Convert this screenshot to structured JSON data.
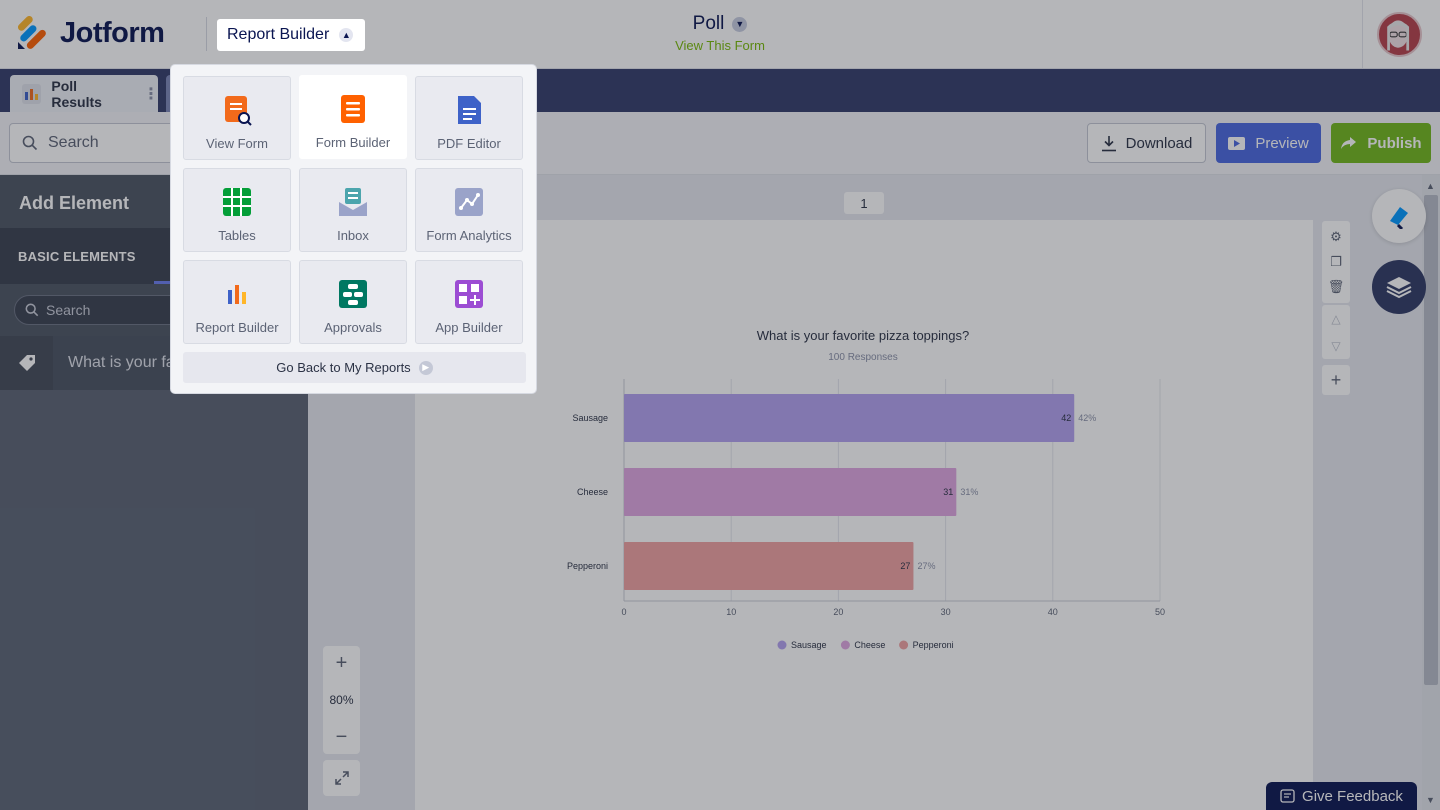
{
  "header": {
    "logo_text": "Jotform",
    "app_switcher_label": "Report Builder",
    "form_title": "Poll",
    "view_form_link": "View This Form"
  },
  "tabs": [
    {
      "label": "Poll Results"
    }
  ],
  "toolbar": {
    "search_placeholder": "Search",
    "download_label": "Download",
    "preview_label": "Preview",
    "publish_label": "Publish"
  },
  "left_panel": {
    "title": "Add Element",
    "tab_label": "BASIC ELEMENTS",
    "search_placeholder": "Search",
    "items": [
      {
        "label": "What is your fa"
      }
    ]
  },
  "canvas": {
    "page_number": "1",
    "zoom_level": "80%"
  },
  "chart_data": {
    "type": "bar",
    "orientation": "horizontal",
    "title": "What is your favorite pizza toppings?",
    "subtitle": "100 Responses",
    "categories": [
      "Sausage",
      "Cheese",
      "Pepperoni"
    ],
    "values": [
      42,
      31,
      27
    ],
    "percent_labels": [
      "42%",
      "31%",
      "27%"
    ],
    "colors": [
      "#b4a2f0",
      "#e0a6e2",
      "#f1a1a1"
    ],
    "xlim": [
      0,
      50
    ],
    "xticks": [
      0,
      10,
      20,
      30,
      40,
      50
    ],
    "grid": true,
    "legend_position": "bottom"
  },
  "app_menu": {
    "items": [
      {
        "label": "View Form",
        "icon": "view-form-icon",
        "color": "#f26a1b"
      },
      {
        "label": "Form Builder",
        "icon": "form-builder-icon",
        "color": "#ff6100",
        "active": true
      },
      {
        "label": "PDF Editor",
        "icon": "pdf-editor-icon",
        "color": "#3e62c8"
      },
      {
        "label": "Tables",
        "icon": "tables-icon",
        "color": "#049e38"
      },
      {
        "label": "Inbox",
        "icon": "inbox-icon",
        "color": "#4ca5ad"
      },
      {
        "label": "Form Analytics",
        "icon": "form-analytics-icon",
        "color": "#9aa3c9"
      },
      {
        "label": "Report Builder",
        "icon": "report-builder-icon",
        "color": "#344067"
      },
      {
        "label": "Approvals",
        "icon": "approvals-icon",
        "color": "#007862"
      },
      {
        "label": "App Builder",
        "icon": "app-builder-icon",
        "color": "#9c4dd3"
      }
    ],
    "back_label": "Go Back to My Reports"
  },
  "feedback_label": "Give Feedback"
}
